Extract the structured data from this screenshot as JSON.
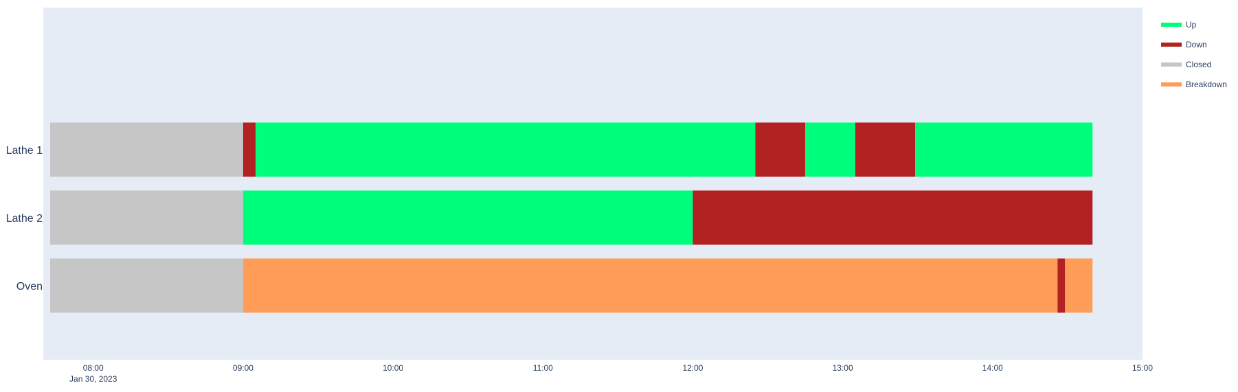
{
  "chart_data": {
    "type": "timeline",
    "title": "",
    "xlabel": "",
    "ylabel": "",
    "x_range": [
      "07:40",
      "15:00"
    ],
    "x_ticks": [
      "08:00",
      "09:00",
      "10:00",
      "11:00",
      "12:00",
      "13:00",
      "14:00",
      "15:00"
    ],
    "x_date_label": "Jan 30, 2023",
    "colors": {
      "Up": "#00fe7d",
      "Down": "#b22222",
      "Closed": "#c6c6c6",
      "Breakdown": "#ff9c57"
    },
    "legend": [
      "Up",
      "Down",
      "Closed",
      "Breakdown"
    ],
    "resources": [
      "Lathe 1",
      "Lathe 2",
      "Oven"
    ],
    "tasks": [
      {
        "resource": "Lathe 1",
        "state": "Closed",
        "start": "07:40",
        "end": "09:00"
      },
      {
        "resource": "Lathe 1",
        "state": "Down",
        "start": "09:00",
        "end": "09:05"
      },
      {
        "resource": "Lathe 1",
        "state": "Up",
        "start": "09:05",
        "end": "12:25"
      },
      {
        "resource": "Lathe 1",
        "state": "Down",
        "start": "12:25",
        "end": "12:45"
      },
      {
        "resource": "Lathe 1",
        "state": "Up",
        "start": "12:45",
        "end": "13:05"
      },
      {
        "resource": "Lathe 1",
        "state": "Down",
        "start": "13:05",
        "end": "13:29"
      },
      {
        "resource": "Lathe 1",
        "state": "Up",
        "start": "13:29",
        "end": "14:40"
      },
      {
        "resource": "Lathe 2",
        "state": "Closed",
        "start": "07:40",
        "end": "09:00"
      },
      {
        "resource": "Lathe 2",
        "state": "Up",
        "start": "09:00",
        "end": "12:00"
      },
      {
        "resource": "Lathe 2",
        "state": "Down",
        "start": "12:00",
        "end": "14:40"
      },
      {
        "resource": "Oven",
        "state": "Closed",
        "start": "07:40",
        "end": "09:00"
      },
      {
        "resource": "Oven",
        "state": "Breakdown",
        "start": "09:00",
        "end": "14:26"
      },
      {
        "resource": "Oven",
        "state": "Down",
        "start": "14:26",
        "end": "14:29"
      },
      {
        "resource": "Oven",
        "state": "Breakdown",
        "start": "14:29",
        "end": "14:40"
      }
    ]
  }
}
